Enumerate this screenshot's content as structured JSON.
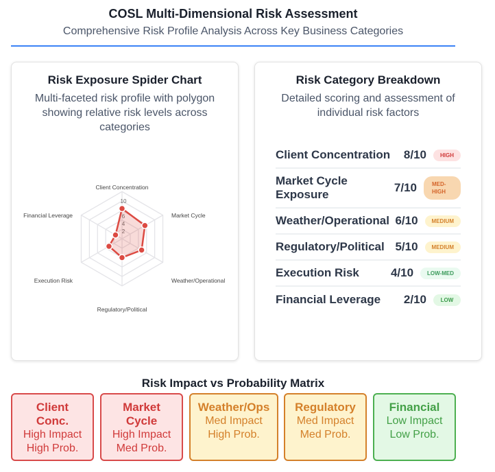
{
  "header": {
    "title": "COSL Multi-Dimensional Risk Assessment",
    "subtitle": "Comprehensive Risk Profile Analysis Across Key Business Categories"
  },
  "spider": {
    "title": "Risk Exposure Spider Chart",
    "description": "Multi-faceted risk profile with polygon showing relative risk levels across categories"
  },
  "chart_data": {
    "type": "radar",
    "categories": [
      "Client Concentration",
      "Market Cycle",
      "Weather/Operational",
      "Regulatory/Political",
      "Execution Risk",
      "Financial Leverage"
    ],
    "values": [
      8,
      7,
      6,
      5,
      4,
      2
    ],
    "rlim": [
      0,
      10
    ],
    "ticks": [
      "2",
      "4",
      "6",
      "8",
      "10"
    ],
    "color": "#dc4a42",
    "fill": "rgba(220,74,66,0.2)",
    "grid": true
  },
  "breakdown": {
    "title": "Risk Category Breakdown",
    "description": "Detailed scoring and assessment of individual risk factors",
    "items": [
      {
        "name": "Client Concentration",
        "score": "8/10",
        "level": "HIGH",
        "bg": "#fde2e2",
        "fg": "#d03a3a"
      },
      {
        "name": "Market Cycle Exposure",
        "score": "7/10",
        "level": "MED-HIGH",
        "bg": "#f8d7b0",
        "fg": "#d4652a"
      },
      {
        "name": "Weather/Operational",
        "score": "6/10",
        "level": "MEDIUM",
        "bg": "#fef3cd",
        "fg": "#d4802a"
      },
      {
        "name": "Regulatory/Political",
        "score": "5/10",
        "level": "MEDIUM",
        "bg": "#fef3cd",
        "fg": "#d4802a"
      },
      {
        "name": "Execution Risk",
        "score": "4/10",
        "level": "LOW-MED",
        "bg": "#eafaf0",
        "fg": "#3a9a5a"
      },
      {
        "name": "Financial Leverage",
        "score": "2/10",
        "level": "LOW",
        "bg": "#e3f8e5",
        "fg": "#3a9a4a"
      }
    ]
  },
  "matrix": {
    "title": "Risk Impact vs Probability Matrix",
    "items": [
      {
        "name": "Client Conc.",
        "impact": "High Impact",
        "prob": "High Prob.",
        "bg": "#fde4e4",
        "fg": "#d03a3a",
        "border": "#d84a4a"
      },
      {
        "name": "Market Cycle",
        "impact": "High Impact",
        "prob": "Med Prob.",
        "bg": "#fde4e4",
        "fg": "#d03a3a",
        "border": "#d84a4a"
      },
      {
        "name": "Weather/Ops",
        "impact": "Med Impact",
        "prob": "High Prob.",
        "bg": "#fef3cd",
        "fg": "#d4802a",
        "border": "#d4802a"
      },
      {
        "name": "Regulatory",
        "impact": "Med Impact",
        "prob": "Med Prob.",
        "bg": "#fef3cd",
        "fg": "#d4802a",
        "border": "#d4802a"
      },
      {
        "name": "Financial",
        "impact": "Low Impact",
        "prob": "Low Prob.",
        "bg": "#e3f8e5",
        "fg": "#43a047",
        "border": "#4caf50"
      }
    ]
  }
}
